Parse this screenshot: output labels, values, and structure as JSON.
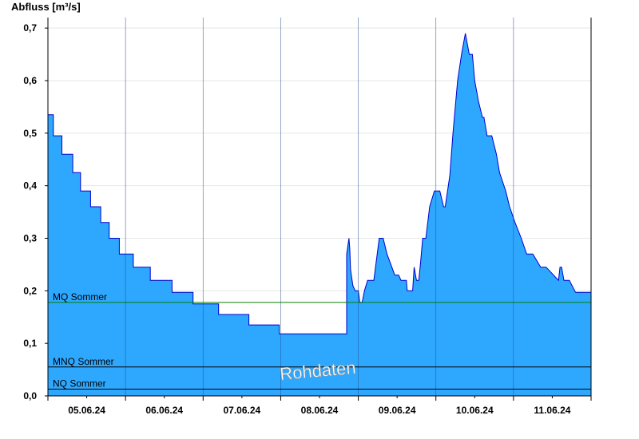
{
  "chart_data": {
    "type": "area",
    "ylabel": "Abfluss [m³/s]",
    "ylim": [
      0,
      0.72
    ],
    "yticks": [
      0,
      0.1,
      0.2,
      0.3,
      0.4,
      0.5,
      0.6,
      0.7
    ],
    "ytick_labels": [
      "0,0",
      "0,1",
      "0,2",
      "0,3",
      "0,4",
      "0,5",
      "0,6",
      "0,7"
    ],
    "xlim": [
      0,
      7
    ],
    "xtick_labels": [
      "05.06.24",
      "06.06.24",
      "07.06.24",
      "08.06.24",
      "09.06.24",
      "10.06.24",
      "11.06.24"
    ],
    "grid": true,
    "watermark": "Rohdaten",
    "colors": {
      "fill": "#2ea8ff",
      "line": "#0000cc",
      "mq_line": "#008000",
      "ref_line": "#000000"
    },
    "reference_lines": [
      {
        "label": "MQ Sommer",
        "value": 0.178
      },
      {
        "label": "MNQ Sommer",
        "value": 0.055
      },
      {
        "label": "NQ Sommer",
        "value": 0.013
      }
    ],
    "series": [
      {
        "x": [
          0,
          0.07,
          0.07,
          0.18,
          0.18,
          0.32,
          0.32,
          0.42,
          0.42,
          0.55,
          0.55,
          0.68,
          0.68,
          0.79,
          0.79,
          0.92,
          0.92,
          1.1,
          1.1,
          1.32,
          1.32,
          1.6,
          1.6,
          1.87,
          1.87,
          2.2,
          2.2,
          2.59,
          2.59,
          2.98,
          2.98,
          3.5,
          3.5,
          3.85,
          3.85,
          3.88,
          3.89,
          3.9,
          3.93,
          3.96,
          4.0,
          4.02,
          4.05,
          4.08,
          4.12,
          4.2,
          4.27,
          4.32,
          4.37,
          4.42,
          4.47,
          4.52,
          4.55,
          4.62,
          4.63,
          4.7,
          4.72,
          4.75,
          4.78,
          4.8,
          4.83,
          4.85,
          4.87,
          4.92,
          4.98,
          5.05,
          5.1,
          5.12,
          5.18,
          5.22,
          5.28,
          5.33,
          5.38,
          5.43,
          5.47,
          5.5,
          5.55,
          5.6,
          5.62,
          5.66,
          5.72,
          5.78,
          5.82,
          5.9,
          5.95,
          6.02,
          6.1,
          6.17,
          6.25,
          6.35,
          6.42,
          6.58,
          6.6,
          6.62,
          6.65,
          6.68,
          6.72,
          6.8,
          6.9,
          7.0
        ],
        "y": [
          0.535,
          0.535,
          0.495,
          0.495,
          0.46,
          0.46,
          0.425,
          0.425,
          0.39,
          0.39,
          0.36,
          0.36,
          0.33,
          0.33,
          0.3,
          0.3,
          0.27,
          0.27,
          0.245,
          0.245,
          0.22,
          0.22,
          0.197,
          0.197,
          0.175,
          0.175,
          0.155,
          0.155,
          0.135,
          0.135,
          0.118,
          0.118,
          0.118,
          0.118,
          0.27,
          0.3,
          0.28,
          0.24,
          0.21,
          0.2,
          0.2,
          0.178,
          0.178,
          0.2,
          0.22,
          0.22,
          0.3,
          0.3,
          0.27,
          0.25,
          0.23,
          0.23,
          0.22,
          0.22,
          0.2,
          0.2,
          0.245,
          0.22,
          0.22,
          0.25,
          0.3,
          0.3,
          0.3,
          0.36,
          0.39,
          0.39,
          0.36,
          0.36,
          0.42,
          0.5,
          0.6,
          0.65,
          0.69,
          0.65,
          0.65,
          0.6,
          0.56,
          0.53,
          0.53,
          0.495,
          0.495,
          0.46,
          0.425,
          0.39,
          0.36,
          0.33,
          0.3,
          0.27,
          0.27,
          0.245,
          0.245,
          0.22,
          0.245,
          0.245,
          0.22,
          0.22,
          0.22,
          0.197,
          0.197,
          0.197
        ]
      }
    ]
  }
}
